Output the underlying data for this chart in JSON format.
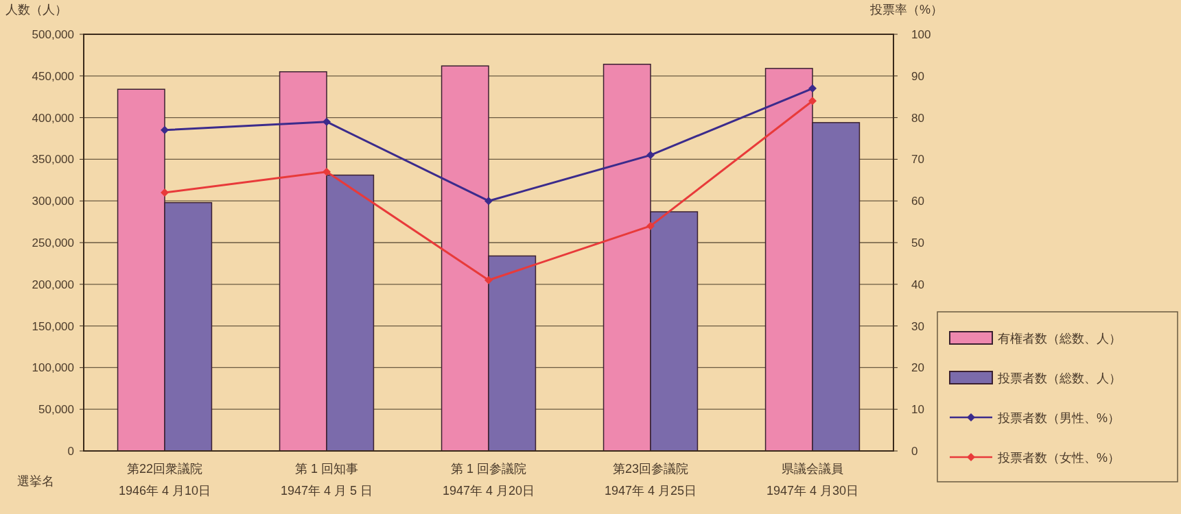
{
  "chart_data": {
    "type": "bar",
    "ylabel": "人数（人）",
    "y2label": "投票率（%）",
    "xlabel": "選挙名",
    "categories": [
      "第22回衆議院\n1946年 4 月10日",
      "第 1 回知事\n1947年 4 月 5 日",
      "第 1 回参議院\n1947年 4 月20日",
      "第23回参議院\n1947年 4 月25日",
      "県議会議員\n1947年 4 月30日"
    ],
    "series": [
      {
        "name": "有権者数（総数、人）",
        "color": "#ee88ae",
        "values": [
          434000,
          455000,
          462000,
          464000,
          459000
        ]
      },
      {
        "name": "投票者数（総数、人）",
        "color": "#7b6bab",
        "values": [
          298000,
          331000,
          234000,
          287000,
          394000
        ]
      },
      {
        "name": "投票者数（男性、%）",
        "type": "line",
        "axis": "y2",
        "color": "#3b2b8c",
        "marker": "diamond",
        "values": [
          77,
          79,
          60,
          71,
          87
        ]
      },
      {
        "name": "投票者数（女性、%）",
        "type": "line",
        "axis": "y2",
        "color": "#e83a3a",
        "marker": "diamond",
        "values": [
          62,
          67,
          41,
          54,
          84
        ]
      }
    ],
    "ylim": [
      0,
      500000
    ],
    "yticks": [
      {
        "value": 0,
        "label": "0"
      },
      {
        "value": 50000,
        "label": "50,000"
      },
      {
        "value": 100000,
        "label": "100,000"
      },
      {
        "value": 150000,
        "label": "150,000"
      },
      {
        "value": 200000,
        "label": "200,000"
      },
      {
        "value": 250000,
        "label": "250,000"
      },
      {
        "value": 300000,
        "label": "300,000"
      },
      {
        "value": 350000,
        "label": "350,000"
      },
      {
        "value": 400000,
        "label": "400,000"
      },
      {
        "value": 450000,
        "label": "450,000"
      },
      {
        "value": 500000,
        "label": "500,000"
      }
    ],
    "y2lim": [
      0,
      100
    ],
    "y2ticks": [
      0,
      10,
      20,
      30,
      40,
      50,
      60,
      70,
      80,
      90,
      100
    ],
    "grid": "y",
    "legend": "right"
  }
}
